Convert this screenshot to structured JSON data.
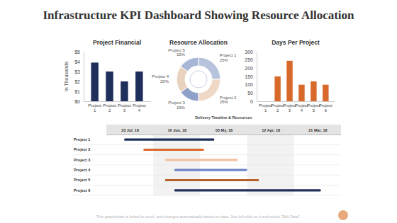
{
  "title": "Infrastructure KPI Dashboard Showing Resource Allocation",
  "footer": "This graph/chart is linked to excel, and changes automatically based on data. Just left click on it and select \"Edit Data\".",
  "chart_data": [
    {
      "type": "bar",
      "title": "Project Financial",
      "ylabel": "In Thousands",
      "categories": [
        "Project 1",
        "Project 2",
        "Project 3",
        "Project 4"
      ],
      "values": [
        3.9,
        3,
        2,
        3
      ],
      "color": "#1f2f5c",
      "ylim": [
        0,
        5
      ],
      "yticks": [
        {
          "value": 0,
          "label": "$0"
        },
        {
          "value": 1,
          "label": "$1"
        },
        {
          "value": 2,
          "label": "$2"
        },
        {
          "value": 3,
          "label": "$3"
        },
        {
          "value": 4,
          "label": "$4"
        },
        {
          "value": 5,
          "label": "$5"
        }
      ]
    },
    {
      "type": "pie",
      "title": "Resource Allocation",
      "categories": [
        "Project 1",
        "Project 2",
        "Project 3",
        "Project 4",
        "Project 5"
      ],
      "values": [
        25,
        25,
        15,
        20,
        15
      ],
      "value_labels": [
        "25%",
        "25%",
        "15%",
        "20%",
        "15%"
      ],
      "colors": [
        "#b7c3dc",
        "#efd9c6",
        "#8ea1c9",
        "#e9d3bf",
        "#a7b6d5"
      ],
      "data_labels": true
    },
    {
      "type": "bar",
      "title": "Days Per Project",
      "categories": [
        "Project 1",
        "Project 2",
        "Project 3",
        "Project 4",
        "Project 5",
        "Project 6"
      ],
      "values": [
        0,
        150,
        245,
        100,
        120,
        100
      ],
      "color": "#d9692b",
      "ylim": [
        0,
        300
      ],
      "yticks": [
        0,
        50,
        100,
        150,
        200,
        250,
        300
      ]
    },
    {
      "type": "gantt",
      "title": "Delivery Timeline & Resources",
      "categories": [
        "Project 1",
        "Project 2",
        "Project 3",
        "Project 4",
        "Project 5",
        "Project 6"
      ],
      "start": [
        0.38,
        0.79,
        1.25,
        1.45,
        1.25,
        1.45
      ],
      "end": [
        2.3,
        2.08,
        2.8,
        3.0,
        3.25,
        4.57
      ],
      "colors": [
        "#1f2f5c",
        "#d9692b",
        "#f2c2a0",
        "#6f86c6",
        "#b8602c",
        "#1f2f5c"
      ],
      "xlim": [
        0,
        5
      ],
      "xticks": [
        {
          "value": 0.5,
          "label": "23 Jul, 18"
        },
        {
          "value": 1.5,
          "label": "16 Jun, 18"
        },
        {
          "value": 2.5,
          "label": "05 My, 18"
        },
        {
          "value": 3.5,
          "label": "12 Apr, 18"
        },
        {
          "value": 4.5,
          "label": "21 Mar, 18"
        }
      ],
      "grid": true
    }
  ]
}
